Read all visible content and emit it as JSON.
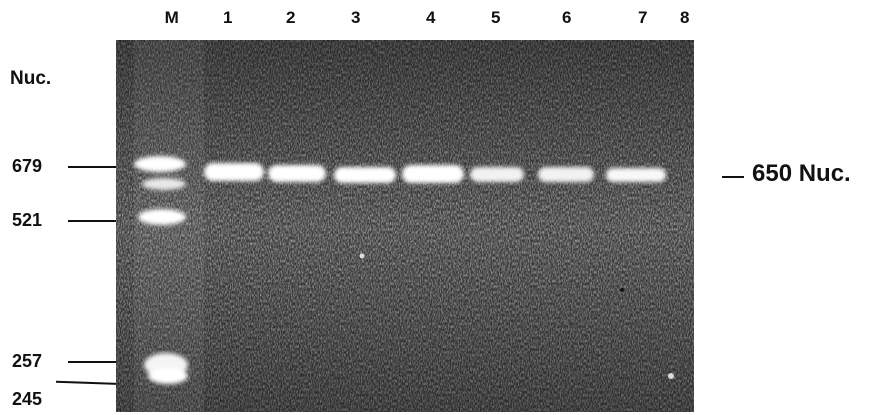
{
  "lanes": [
    "M",
    "1",
    "2",
    "3",
    "4",
    "5",
    "6",
    "7",
    "8"
  ],
  "axis_unit": "Nuc.",
  "markers": [
    "679",
    "521",
    "257",
    "245"
  ],
  "product_label": "650 Nuc.",
  "colors": {
    "gel_background": "#4a4a4a",
    "band": "#ffffff",
    "text": "#111111"
  }
}
